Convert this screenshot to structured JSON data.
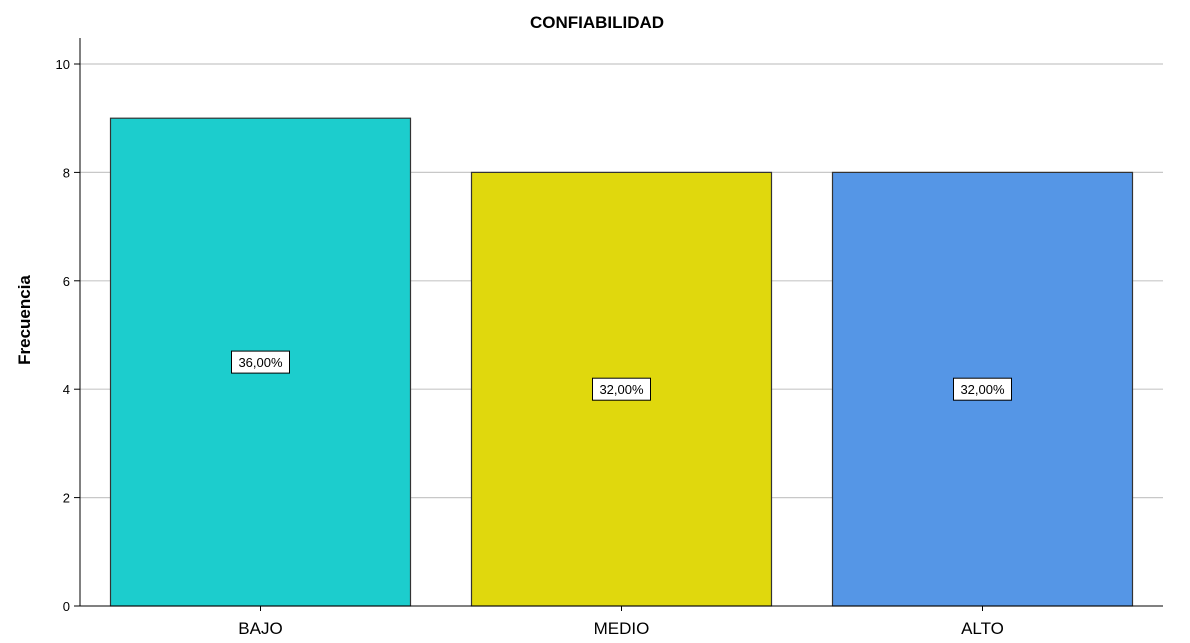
{
  "chart_data": {
    "type": "bar",
    "title": "CONFIABILIDAD",
    "xlabel": "",
    "ylabel": "Frecuencia",
    "categories": [
      "BAJO",
      "MEDIO",
      "ALTO"
    ],
    "values": [
      9,
      8,
      8
    ],
    "data_labels": [
      "36,00%",
      "32,00%",
      "32,00%"
    ],
    "colors": [
      "#1ccdcd",
      "#e0d80d",
      "#5596e6"
    ],
    "ylim": [
      0,
      10
    ],
    "yticks": [
      0,
      2,
      4,
      6,
      8,
      10
    ],
    "grid": true,
    "legend": "none"
  }
}
